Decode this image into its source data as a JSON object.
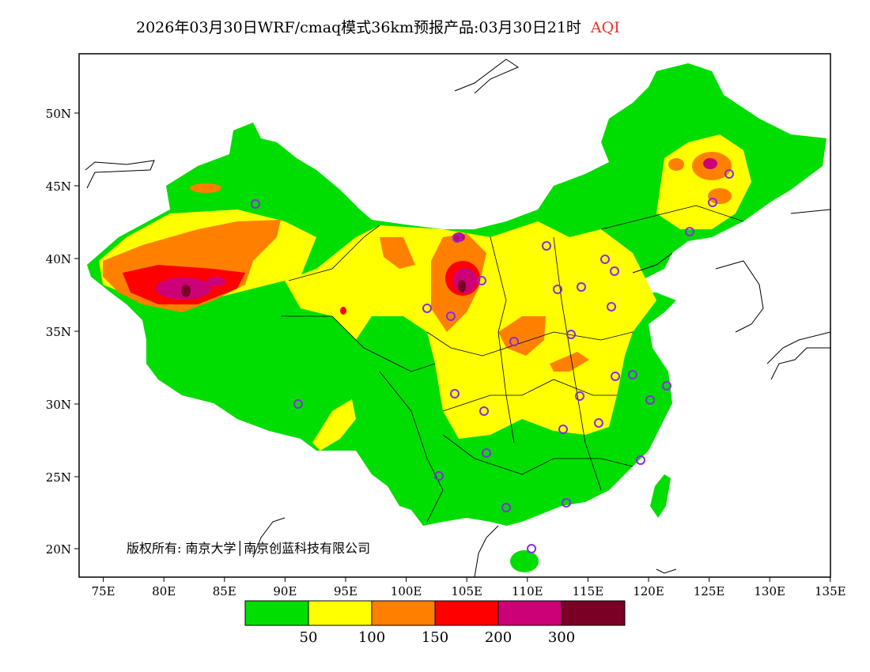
{
  "title": {
    "text": "2026年03月30日WRF/cmaq模式36km预报产品:03月30日21时",
    "variable": "AQI"
  },
  "copyright": "版权所有: 南京大学│南京创蓝科技有限公司",
  "axes": {
    "lon_labels": [
      "75E",
      "80E",
      "85E",
      "90E",
      "95E",
      "100E",
      "105E",
      "110E",
      "115E",
      "120E",
      "125E",
      "130E",
      "135E"
    ],
    "lat_labels": [
      "50N",
      "45N",
      "40N",
      "35N",
      "30N",
      "25N",
      "20N"
    ]
  },
  "legend": {
    "colors": [
      "#00dd00",
      "#ffff00",
      "#ff8000",
      "#ff0000",
      "#cc0077",
      "#7a0025"
    ],
    "labels": [
      "50",
      "100",
      "150",
      "200",
      "300"
    ]
  },
  "colors": {
    "station": "#8a2be2"
  }
}
